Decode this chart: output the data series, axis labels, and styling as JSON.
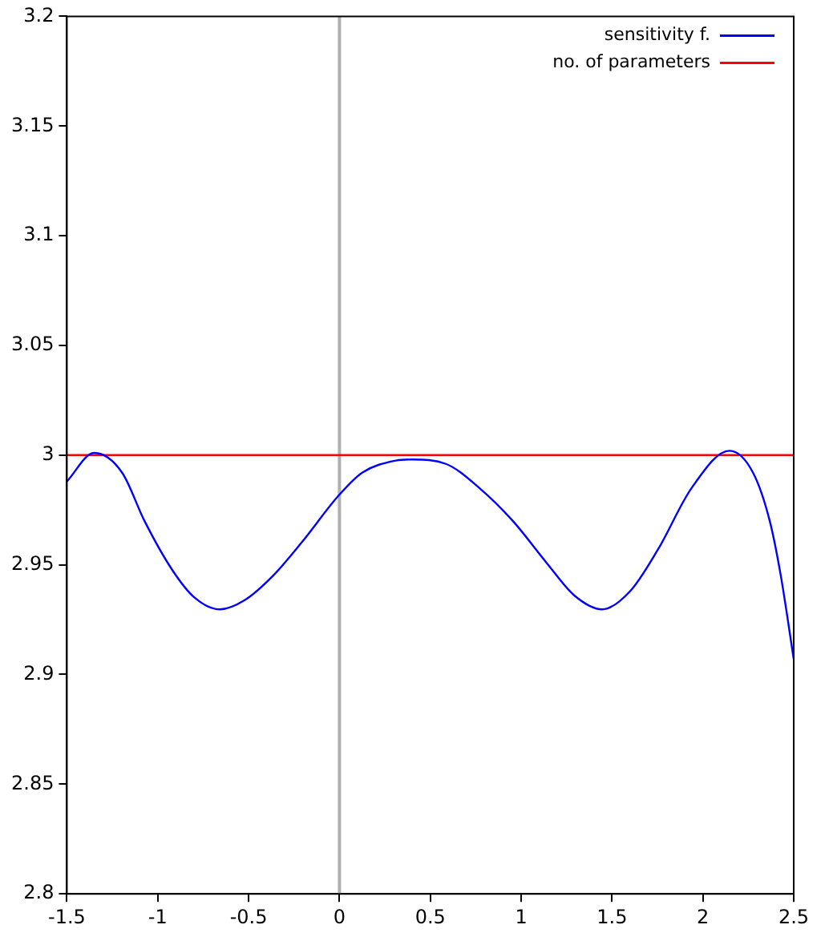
{
  "chart_data": {
    "type": "line",
    "xlim": [
      -1.5,
      2.5
    ],
    "xticks": [
      -1.5,
      -1,
      -0.5,
      0,
      0.5,
      1,
      1.5,
      2,
      2.5
    ],
    "ylim": [
      2.8,
      3.2
    ],
    "yticks": [
      2.8,
      2.85,
      2.9,
      2.95,
      3,
      3.05,
      3.1,
      3.15,
      3.2
    ],
    "series": [
      {
        "name": "sensitivity f.",
        "color": "#0000ff",
        "x": [
          -1.5,
          -1.35,
          -1.196,
          -1.073,
          -0.919,
          -0.797,
          -0.659,
          -0.52,
          -0.366,
          -0.21,
          0,
          0.125,
          0.31,
          0.4,
          0.586,
          0.77,
          0.954,
          1.139,
          1.293,
          1.446,
          1.6,
          1.753,
          1.938,
          2.147,
          2.276,
          2.368,
          2.429,
          2.5
        ],
        "values": [
          2.988,
          3.001,
          2.992,
          2.97,
          2.9475,
          2.935,
          2.9297,
          2.934,
          2.945,
          2.96,
          2.982,
          2.992,
          2.9975,
          2.998,
          2.996,
          2.985,
          2.97,
          2.951,
          2.936,
          2.9297,
          2.938,
          2.957,
          2.985,
          3.002,
          2.992,
          2.97,
          2.945,
          2.907
        ]
      },
      {
        "name": "no. of parameters",
        "color": "#ff0000",
        "x": [
          -1.5,
          2.5
        ],
        "values": [
          3,
          3
        ]
      }
    ],
    "ref_lines": [
      {
        "axis": "x",
        "value": 0,
        "color": "#b0b0b0"
      }
    ],
    "legend": "top right",
    "grid": false,
    "marker": "none",
    "line_style": "solid"
  }
}
